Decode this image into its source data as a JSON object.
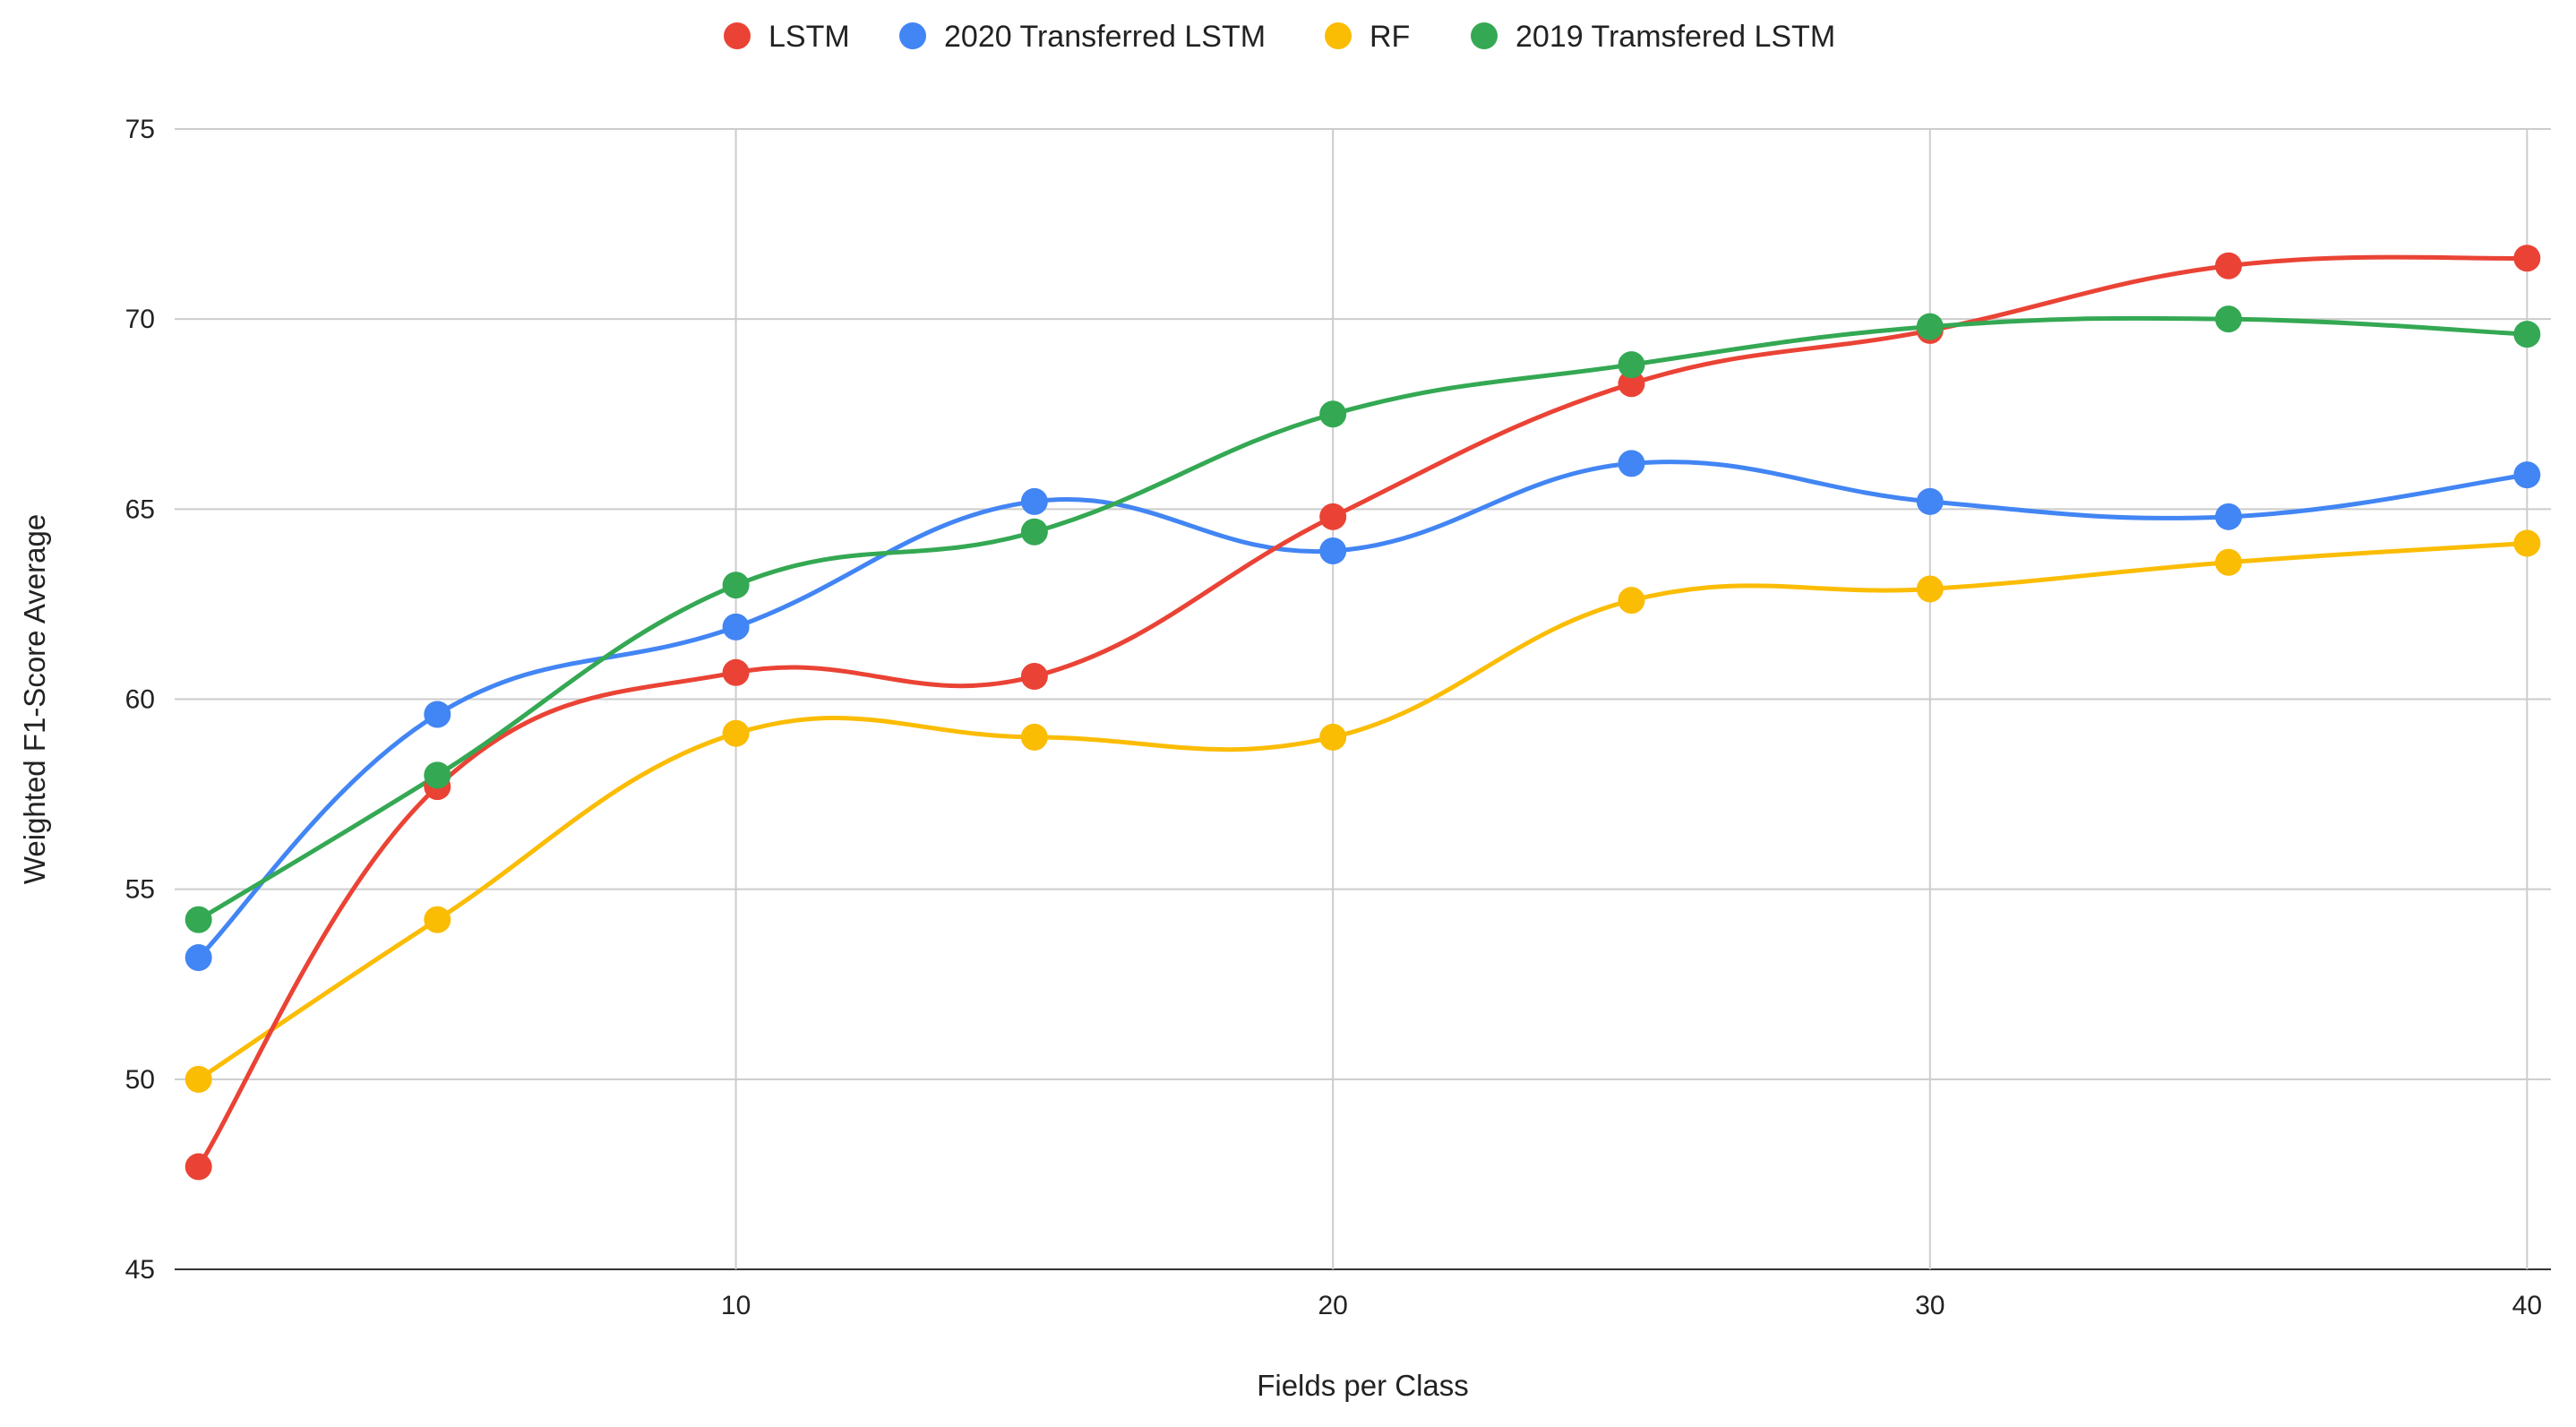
{
  "chart_data": {
    "type": "line",
    "title": "",
    "xlabel": "Fields per Class",
    "ylabel": "Weighted F1-Score Average",
    "xlim": [
      0.6,
      40.4
    ],
    "ylim": [
      45,
      75
    ],
    "x_ticks": [
      10,
      20,
      30,
      40
    ],
    "y_ticks": [
      45,
      50,
      55,
      60,
      65,
      70,
      75
    ],
    "grid": true,
    "legend_position": "top",
    "x": [
      1,
      5,
      10,
      15,
      20,
      25,
      30,
      35,
      40
    ],
    "series": [
      {
        "name": "LSTM",
        "color": "#ea4335",
        "values": [
          47.7,
          57.7,
          60.7,
          60.6,
          64.8,
          68.3,
          69.7,
          71.4,
          71.6
        ]
      },
      {
        "name": "2020 Transferred LSTM",
        "color": "#4285f4",
        "values": [
          53.2,
          59.6,
          61.9,
          65.2,
          63.9,
          66.2,
          65.2,
          64.8,
          65.9
        ]
      },
      {
        "name": "RF",
        "color": "#fbbc04",
        "values": [
          50.0,
          54.2,
          59.1,
          59.0,
          59.0,
          62.6,
          62.9,
          63.6,
          64.1
        ]
      },
      {
        "name": "2019 Tramsfered LSTM",
        "color": "#34a853",
        "values": [
          54.2,
          58.0,
          63.0,
          64.4,
          67.5,
          68.8,
          69.8,
          70.0,
          69.6
        ]
      }
    ]
  }
}
